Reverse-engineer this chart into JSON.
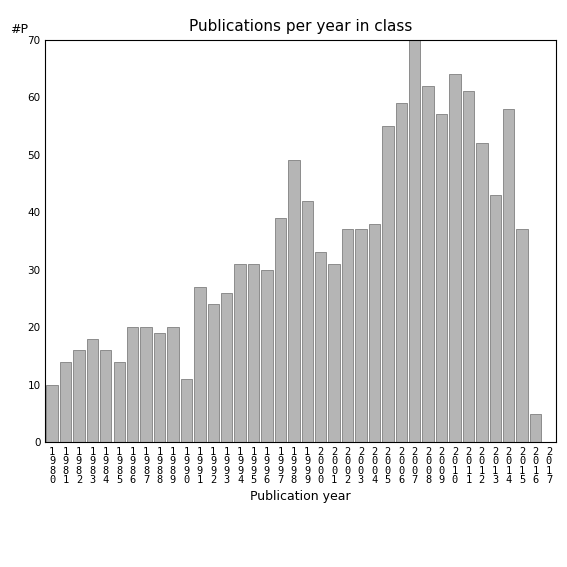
{
  "title": "Publications per year in class",
  "xlabel": "Publication year",
  "ylabel": "#P",
  "years": [
    "1980",
    "1981",
    "1982",
    "1983",
    "1984",
    "1985",
    "1986",
    "1987",
    "1988",
    "1989",
    "1990",
    "1991",
    "1992",
    "1993",
    "1994",
    "1995",
    "1996",
    "1997",
    "1998",
    "1999",
    "2000",
    "2001",
    "2002",
    "2003",
    "2004",
    "2005",
    "2006",
    "2007",
    "2008",
    "2009",
    "2010",
    "2011",
    "2012",
    "2013",
    "2014",
    "2015",
    "2016",
    "2017"
  ],
  "values": [
    10,
    14,
    16,
    18,
    16,
    14,
    20,
    20,
    19,
    20,
    11,
    27,
    24,
    26,
    31,
    31,
    30,
    39,
    49,
    42,
    33,
    31,
    37,
    37,
    38,
    55,
    59,
    70,
    62,
    57,
    64,
    61,
    52,
    43,
    58,
    37,
    5,
    0
  ],
  "bar_color": "#b5b5b5",
  "bar_edge_color": "#808080",
  "background_color": "#ffffff",
  "ylim": [
    0,
    70
  ],
  "yticks": [
    0,
    10,
    20,
    30,
    40,
    50,
    60,
    70
  ],
  "title_fontsize": 11,
  "axis_label_fontsize": 9,
  "tick_label_fontsize": 7.5
}
